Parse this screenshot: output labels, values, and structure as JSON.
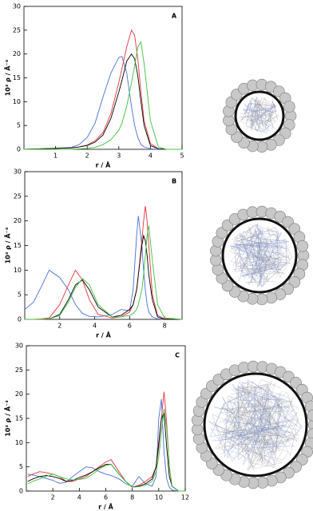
{
  "chart_data": [
    {
      "type": "line",
      "panel_label": "A",
      "xlabel": "r / Å",
      "ylabel": "10³ ρ / Å⁻³",
      "xlim": [
        0,
        5
      ],
      "xticks": [
        1,
        2,
        3,
        4,
        5
      ],
      "ylim": [
        0,
        30
      ],
      "yticks": [
        0,
        5,
        10,
        15,
        20,
        25,
        30
      ],
      "x": [
        0,
        0.5,
        1,
        1.5,
        1.75,
        2,
        2.25,
        2.5,
        2.75,
        3,
        3.1,
        3.25,
        3.4,
        3.5,
        3.6,
        3.7,
        3.8,
        4,
        4.25,
        4.5,
        5
      ],
      "series": [
        {
          "color": "#4a6fd6",
          "values": [
            0,
            0.1,
            0.2,
            0.4,
            1,
            2.5,
            5.5,
            11,
            16,
            19.3,
            19.5,
            16,
            9,
            5,
            2.5,
            1,
            0.5,
            0.1,
            0,
            0,
            0
          ]
        },
        {
          "color": "#e8323a",
          "values": [
            0,
            0.1,
            0.2,
            0.3,
            0.5,
            0.9,
            1.8,
            3.5,
            7.5,
            14,
            17,
            21.5,
            25,
            24,
            19,
            12,
            6,
            1.2,
            0.1,
            0,
            0
          ]
        },
        {
          "color": "#000000",
          "values": [
            0,
            0.1,
            0.2,
            0.3,
            0.5,
            0.8,
            1.5,
            3,
            6.5,
            12,
            14.5,
            18.5,
            20,
            19,
            15.5,
            10,
            5,
            0.8,
            0.1,
            0,
            0
          ]
        },
        {
          "color": "#3cc43c",
          "values": [
            0,
            0,
            0,
            0,
            0.1,
            0.2,
            0.4,
            1,
            2,
            4,
            5.5,
            9,
            14,
            17.5,
            21.5,
            22.5,
            18,
            6,
            0.5,
            0,
            0
          ]
        }
      ]
    },
    {
      "type": "line",
      "panel_label": "B",
      "xlabel": "r / Å",
      "ylabel": "10³ ρ / Å⁻³",
      "xlim": [
        0,
        9
      ],
      "xticks": [
        2,
        4,
        6,
        8
      ],
      "ylim": [
        0,
        30
      ],
      "yticks": [
        0,
        5,
        10,
        15,
        20,
        25,
        30
      ],
      "x": [
        0,
        0.5,
        1,
        1.4,
        2,
        2.5,
        2.9,
        3.3,
        3.7,
        4.2,
        5,
        5.5,
        6,
        6.2,
        6.4,
        6.5,
        6.7,
        6.8,
        6.9,
        7,
        7.1,
        7.3,
        7.6,
        8,
        9
      ],
      "series": [
        {
          "color": "#4a6fd6",
          "values": [
            2,
            3.5,
            7,
            10,
            8.5,
            6,
            3,
            1.2,
            0.6,
            0.5,
            1,
            2,
            1.8,
            6,
            17,
            21,
            15,
            10,
            6,
            3,
            1.5,
            0.5,
            0.1,
            0,
            0
          ]
        },
        {
          "color": "#e8323a",
          "values": [
            0,
            0,
            0.1,
            0.3,
            3,
            7,
            10,
            8,
            4,
            1,
            0.3,
            0.5,
            1.5,
            3,
            6,
            9,
            16,
            20,
            23,
            20,
            15,
            5,
            0.8,
            0.1,
            0
          ]
        },
        {
          "color": "#000000",
          "values": [
            0,
            0,
            0,
            0.1,
            1,
            4,
            7,
            8,
            6,
            2.5,
            0.5,
            0.8,
            2,
            3,
            6,
            9,
            15,
            17,
            16,
            13,
            9,
            4,
            0.5,
            0,
            0
          ]
        },
        {
          "color": "#3cc43c",
          "values": [
            0,
            0,
            0,
            0.1,
            0.8,
            3.5,
            6.5,
            8.3,
            7,
            3,
            0.5,
            0.5,
            0.8,
            1.2,
            2,
            3,
            6,
            9,
            13,
            17,
            19,
            12,
            3,
            0.3,
            0
          ]
        }
      ]
    },
    {
      "type": "line",
      "panel_label": "C",
      "xlabel": "r / Å",
      "ylabel": "10³ ρ / Å⁻³",
      "xlim": [
        0,
        12
      ],
      "xticks": [
        2,
        4,
        6,
        8,
        10,
        12
      ],
      "ylim": [
        0,
        30
      ],
      "yticks": [
        0,
        5,
        10,
        15,
        20,
        25,
        30
      ],
      "x": [
        0.1,
        0.5,
        1,
        1.5,
        2,
        2.5,
        3,
        3.5,
        4,
        4.5,
        5,
        5.5,
        6,
        6.4,
        7,
        7.5,
        8,
        8.5,
        9,
        9.5,
        9.8,
        10,
        10.2,
        10.4,
        10.6,
        10.8,
        11,
        11.5,
        12
      ],
      "series": [
        {
          "color": "#4a6fd6",
          "values": [
            3.5,
            3.3,
            3,
            2.6,
            2.2,
            1.6,
            1.8,
            3,
            4,
            5,
            4.8,
            4,
            3.5,
            3.2,
            2.5,
            1.5,
            1,
            3,
            1.5,
            1,
            3,
            15,
            19,
            8,
            2.5,
            0.8,
            0.2,
            0,
            0
          ]
        },
        {
          "color": "#e8323a",
          "values": [
            3,
            3.5,
            4,
            3.8,
            3.5,
            3,
            2,
            2,
            2.5,
            3,
            4,
            5,
            6,
            6.5,
            4,
            2,
            0.8,
            1.2,
            2,
            3,
            5,
            9,
            15,
            20.5,
            14,
            5,
            1,
            0,
            0
          ]
        },
        {
          "color": "#000000",
          "values": [
            2,
            2.5,
            3,
            3.2,
            3,
            2.6,
            2,
            2.2,
            2.8,
            3.3,
            4,
            4.8,
            5.5,
            5.5,
            3.5,
            2,
            0.8,
            1,
            1.5,
            2.5,
            5,
            10,
            15,
            16,
            9,
            3,
            1,
            0,
            0
          ]
        },
        {
          "color": "#3cc43c",
          "values": [
            1.5,
            2,
            2.5,
            3,
            3.5,
            3,
            2.5,
            2.3,
            2.4,
            2.6,
            3.5,
            4.5,
            5.3,
            5.5,
            3.5,
            2,
            0.8,
            0.9,
            1.2,
            2,
            4,
            7,
            12,
            17,
            13,
            5,
            1,
            0,
            0
          ]
        }
      ]
    }
  ]
}
